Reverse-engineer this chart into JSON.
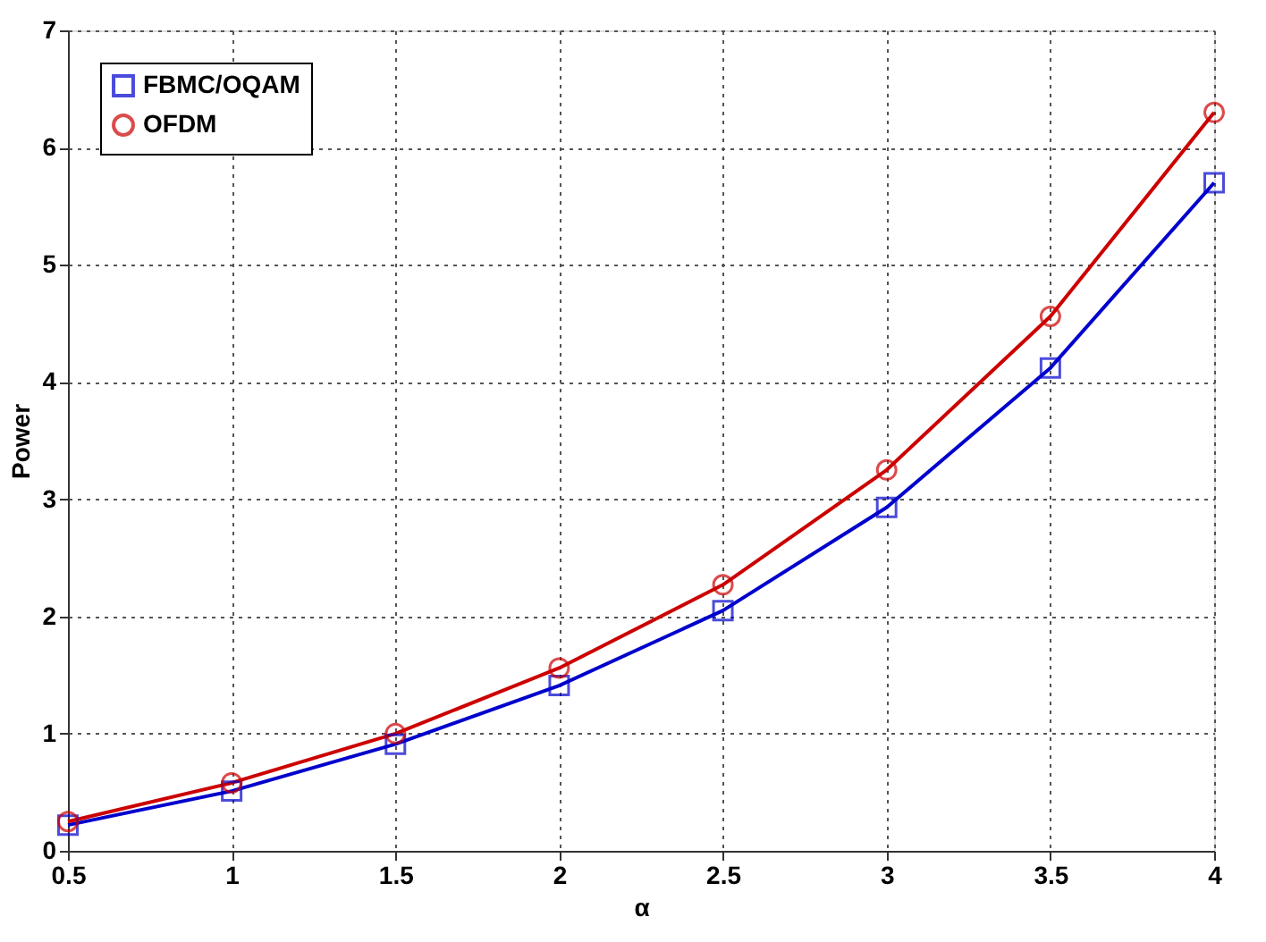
{
  "chart_data": {
    "type": "line",
    "xlabel": "α",
    "ylabel": "Power",
    "x": [
      0.5,
      1,
      1.5,
      2,
      2.5,
      3,
      3.5,
      4
    ],
    "series": [
      {
        "name": "FBMC/OQAM",
        "color": "#0000cc",
        "marker": "square",
        "values": [
          0.22,
          0.51,
          0.91,
          1.41,
          2.05,
          2.93,
          4.12,
          5.7
        ]
      },
      {
        "name": "OFDM",
        "color": "#cc0000",
        "marker": "circle",
        "values": [
          0.25,
          0.58,
          1.0,
          1.56,
          2.27,
          3.25,
          4.56,
          6.3
        ]
      }
    ],
    "xlim": [
      0.5,
      4
    ],
    "xticks": [
      0.5,
      1,
      1.5,
      2,
      2.5,
      3,
      3.5,
      4
    ],
    "ylim": [
      0,
      7
    ],
    "yticks": [
      0,
      1,
      2,
      3,
      4,
      5,
      6,
      7
    ],
    "grid": true,
    "legend": "top left",
    "line_style": "solid"
  }
}
